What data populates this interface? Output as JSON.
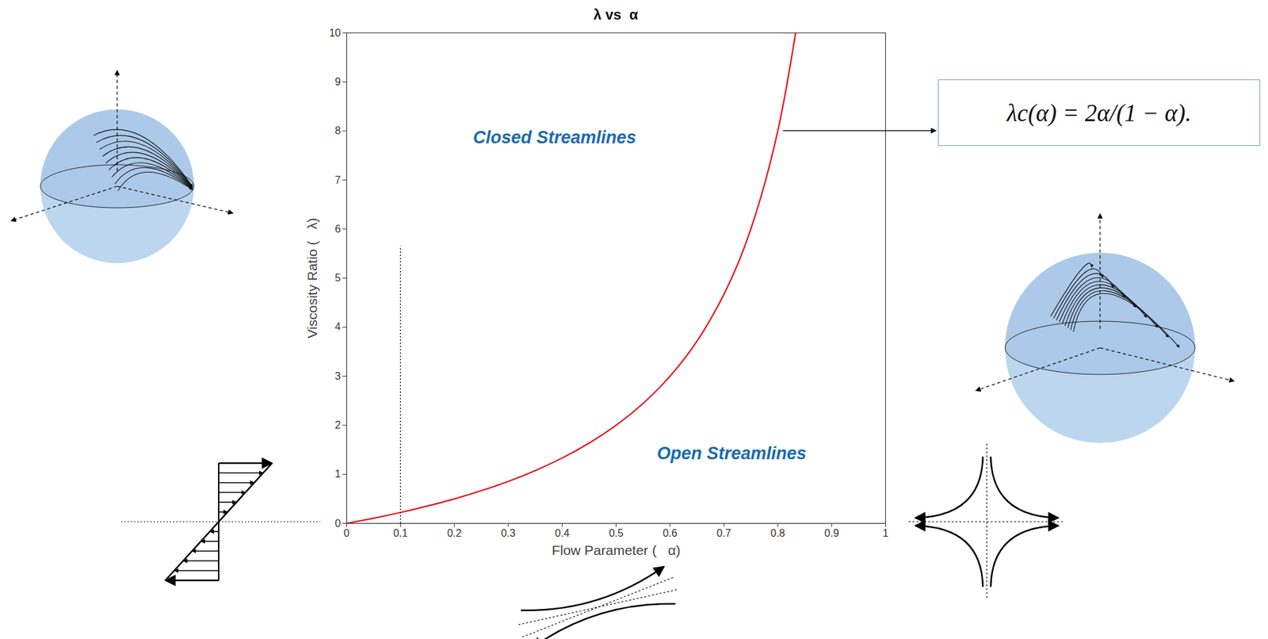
{
  "chart_data": {
    "type": "line",
    "title": "λ vs  α",
    "xlabel": "Flow Parameter (   α)",
    "ylabel": "Viscosity Ratio (   λ)",
    "x": [
      0,
      0.05,
      0.1,
      0.15,
      0.2,
      0.25,
      0.3,
      0.35,
      0.4,
      0.45,
      0.5,
      0.55,
      0.6,
      0.65,
      0.7,
      0.75,
      0.8,
      0.833
    ],
    "values": [
      0,
      0.105,
      0.222,
      0.353,
      0.5,
      0.667,
      0.857,
      1.077,
      1.333,
      1.636,
      2,
      2.444,
      3,
      3.714,
      4.667,
      6,
      8,
      10
    ],
    "color": "#e8141c",
    "xlim": [
      0,
      1
    ],
    "ylim": [
      0,
      10
    ],
    "xticks": [
      0,
      0.1,
      0.2,
      0.3,
      0.4,
      0.5,
      0.6,
      0.7,
      0.8,
      0.9,
      1
    ],
    "yticks": [
      0,
      1,
      2,
      3,
      4,
      5,
      6,
      7,
      8,
      9,
      10
    ],
    "grid": false,
    "annotations": [
      "Closed Streamlines",
      "Open Streamlines"
    ],
    "formula": "λc(α) = 2α/(1 − α).",
    "reference_lines": [
      {
        "x": 0.1,
        "y": [
          0,
          5.65
        ],
        "line_style": "dotted"
      }
    ]
  }
}
